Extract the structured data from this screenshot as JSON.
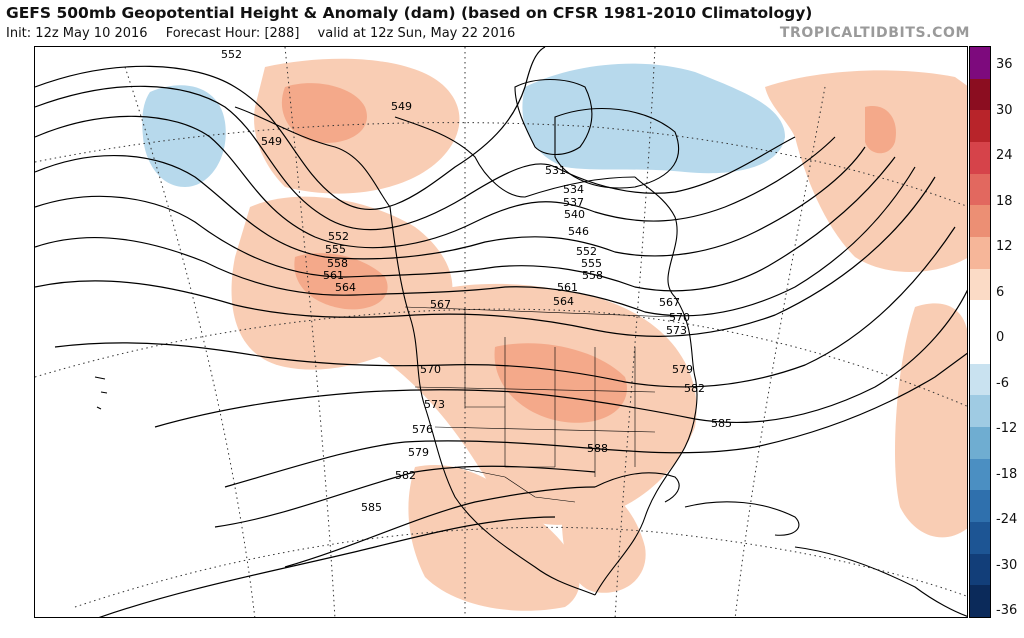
{
  "header": {
    "title": "GEFS 500mb Geopotential Height & Anomaly (dam) (based on CFSR 1981-2010 Climatology)",
    "init": "Init: 12z May 10 2016",
    "forecast_hour": "Forecast Hour: [288]",
    "valid": "valid at 12z Sun, May 22 2016",
    "credit": "TROPICALTIDBITS.COM"
  },
  "colorbar": {
    "labels": [
      "36",
      "30",
      "24",
      "18",
      "12",
      "6",
      "0",
      "-6",
      "-12",
      "-18",
      "-24",
      "-30",
      "-36"
    ],
    "colors": [
      "#7d0a7d",
      "#8b0d20",
      "#b8242a",
      "#d6434a",
      "#e2685f",
      "#ec8f74",
      "#f6b699",
      "#fbdbc6",
      "#ffffff",
      "#ffffff",
      "#c9e2f0",
      "#9fcbe3",
      "#6fadd1",
      "#4b8fc2",
      "#2f70ad",
      "#1d5594",
      "#123e79",
      "#0b2a5a"
    ]
  },
  "contours": {
    "labels": [
      "552",
      "549",
      "549",
      "552",
      "555",
      "558",
      "561",
      "564",
      "567",
      "570",
      "573",
      "576",
      "579",
      "582",
      "585",
      "531",
      "534",
      "537",
      "540",
      "546",
      "552",
      "555",
      "558",
      "561",
      "564",
      "567",
      "570",
      "573",
      "579",
      "582",
      "585",
      "588"
    ]
  }
}
